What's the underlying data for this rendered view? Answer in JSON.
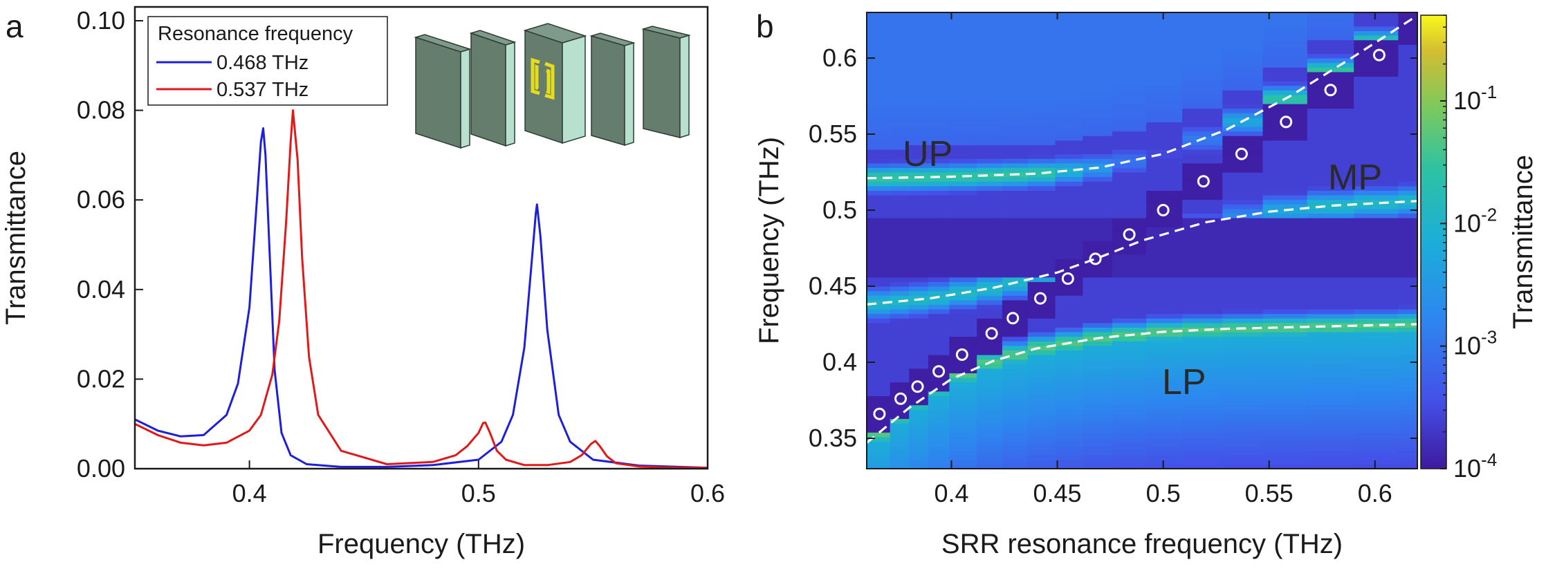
{
  "chart_data": [
    {
      "panel": "a",
      "type": "line",
      "xlabel": "Frequency (THz)",
      "ylabel": "Transmittance",
      "xlim": [
        0.35,
        0.6
      ],
      "ylim": [
        0,
        0.105
      ],
      "xticks": [
        "0.4",
        "0.5",
        "0.6"
      ],
      "yticks": [
        "0.00",
        "0.02",
        "0.04",
        "0.06",
        "0.08",
        "0.10"
      ],
      "legend_title": "Resonance frequency",
      "legend_position": "top-left",
      "series": [
        {
          "name": "0.468 THz",
          "color": "#1f1fd6",
          "x": [
            0.35,
            0.36,
            0.37,
            0.38,
            0.39,
            0.395,
            0.4,
            0.403,
            0.405,
            0.406,
            0.407,
            0.409,
            0.411,
            0.414,
            0.418,
            0.425,
            0.44,
            0.46,
            0.48,
            0.5,
            0.51,
            0.515,
            0.52,
            0.523,
            0.525,
            0.5255,
            0.527,
            0.53,
            0.535,
            0.54,
            0.55,
            0.57,
            0.6
          ],
          "y": [
            0.011,
            0.0085,
            0.0072,
            0.0075,
            0.012,
            0.019,
            0.036,
            0.058,
            0.073,
            0.076,
            0.07,
            0.046,
            0.022,
            0.008,
            0.003,
            0.001,
            0.0004,
            0.0004,
            0.0008,
            0.002,
            0.006,
            0.012,
            0.027,
            0.045,
            0.057,
            0.059,
            0.052,
            0.031,
            0.012,
            0.006,
            0.002,
            0.0007,
            0.0002
          ]
        },
        {
          "name": "0.537 THz",
          "color": "#e01a1a",
          "x": [
            0.35,
            0.36,
            0.37,
            0.38,
            0.39,
            0.4,
            0.405,
            0.41,
            0.413,
            0.416,
            0.418,
            0.419,
            0.421,
            0.423,
            0.426,
            0.43,
            0.44,
            0.46,
            0.48,
            0.49,
            0.495,
            0.5,
            0.502,
            0.503,
            0.505,
            0.508,
            0.512,
            0.52,
            0.53,
            0.54,
            0.545,
            0.549,
            0.551,
            0.553,
            0.556,
            0.56,
            0.57,
            0.58,
            0.6
          ],
          "y": [
            0.01,
            0.0075,
            0.0058,
            0.0052,
            0.0058,
            0.0085,
            0.012,
            0.021,
            0.033,
            0.055,
            0.073,
            0.08,
            0.069,
            0.047,
            0.025,
            0.012,
            0.004,
            0.001,
            0.0015,
            0.003,
            0.005,
            0.008,
            0.0102,
            0.0103,
            0.008,
            0.004,
            0.002,
            0.0008,
            0.0008,
            0.0015,
            0.003,
            0.0055,
            0.0062,
            0.005,
            0.0028,
            0.0012,
            0.0005,
            0.0003,
            0.0002
          ]
        }
      ],
      "inset": {
        "description": "stack of five slabs, middle slab with a double split-ring resonator",
        "slab_color": "#647d6d",
        "edge_color": "#b8e0cf",
        "srr_color": "#e6dc1e"
      }
    },
    {
      "panel": "b",
      "type": "heatmap",
      "xlabel": "SRR resonance frequency (THz)",
      "ylabel": "Frequency (THz)",
      "xlim": [
        0.36,
        0.62
      ],
      "ylim": [
        0.33,
        0.63
      ],
      "xticks": [
        "0.4",
        "0.45",
        "0.5",
        "0.55",
        "0.6"
      ],
      "yticks": [
        "0.35",
        "0.4",
        "0.45",
        "0.5",
        "0.55",
        "0.6"
      ],
      "colorbar_label": "Transmittance",
      "colorbar_scale": "log",
      "colorbar_range": [
        0.0001,
        0.5
      ],
      "colorbar_ticks": [
        {
          "base": "10",
          "exp": "-1",
          "value": 0.1
        },
        {
          "base": "10",
          "exp": "-2",
          "value": 0.01
        },
        {
          "base": "10",
          "exp": "-3",
          "value": 0.001
        },
        {
          "base": "10",
          "exp": "-4",
          "value": 0.0001
        }
      ],
      "branch_labels": [
        "UP",
        "MP",
        "LP"
      ],
      "polariton_branches": [
        {
          "name": "UP",
          "x": [
            0.36,
            0.4,
            0.44,
            0.47,
            0.5,
            0.53,
            0.56,
            0.59,
            0.62
          ],
          "y": [
            0.521,
            0.522,
            0.524,
            0.528,
            0.537,
            0.553,
            0.575,
            0.601,
            0.628
          ]
        },
        {
          "name": "MP",
          "x": [
            0.36,
            0.39,
            0.42,
            0.45,
            0.47,
            0.49,
            0.52,
            0.55,
            0.58,
            0.62
          ],
          "y": [
            0.438,
            0.442,
            0.449,
            0.459,
            0.469,
            0.48,
            0.492,
            0.499,
            0.503,
            0.506
          ]
        },
        {
          "name": "LP",
          "x": [
            0.36,
            0.38,
            0.4,
            0.42,
            0.44,
            0.47,
            0.5,
            0.53,
            0.56,
            0.59,
            0.62
          ],
          "y": [
            0.347,
            0.37,
            0.389,
            0.401,
            0.409,
            0.416,
            0.42,
            0.422,
            0.423,
            0.424,
            0.425
          ]
        }
      ],
      "srr_markers": {
        "x": [
          0.366,
          0.376,
          0.384,
          0.394,
          0.405,
          0.419,
          0.429,
          0.442,
          0.455,
          0.468,
          0.484,
          0.5,
          0.519,
          0.537,
          0.558,
          0.579,
          0.602
        ],
        "y": [
          0.366,
          0.376,
          0.384,
          0.394,
          0.405,
          0.419,
          0.429,
          0.442,
          0.455,
          0.468,
          0.484,
          0.5,
          0.519,
          0.537,
          0.558,
          0.579,
          0.602
        ]
      }
    }
  ]
}
